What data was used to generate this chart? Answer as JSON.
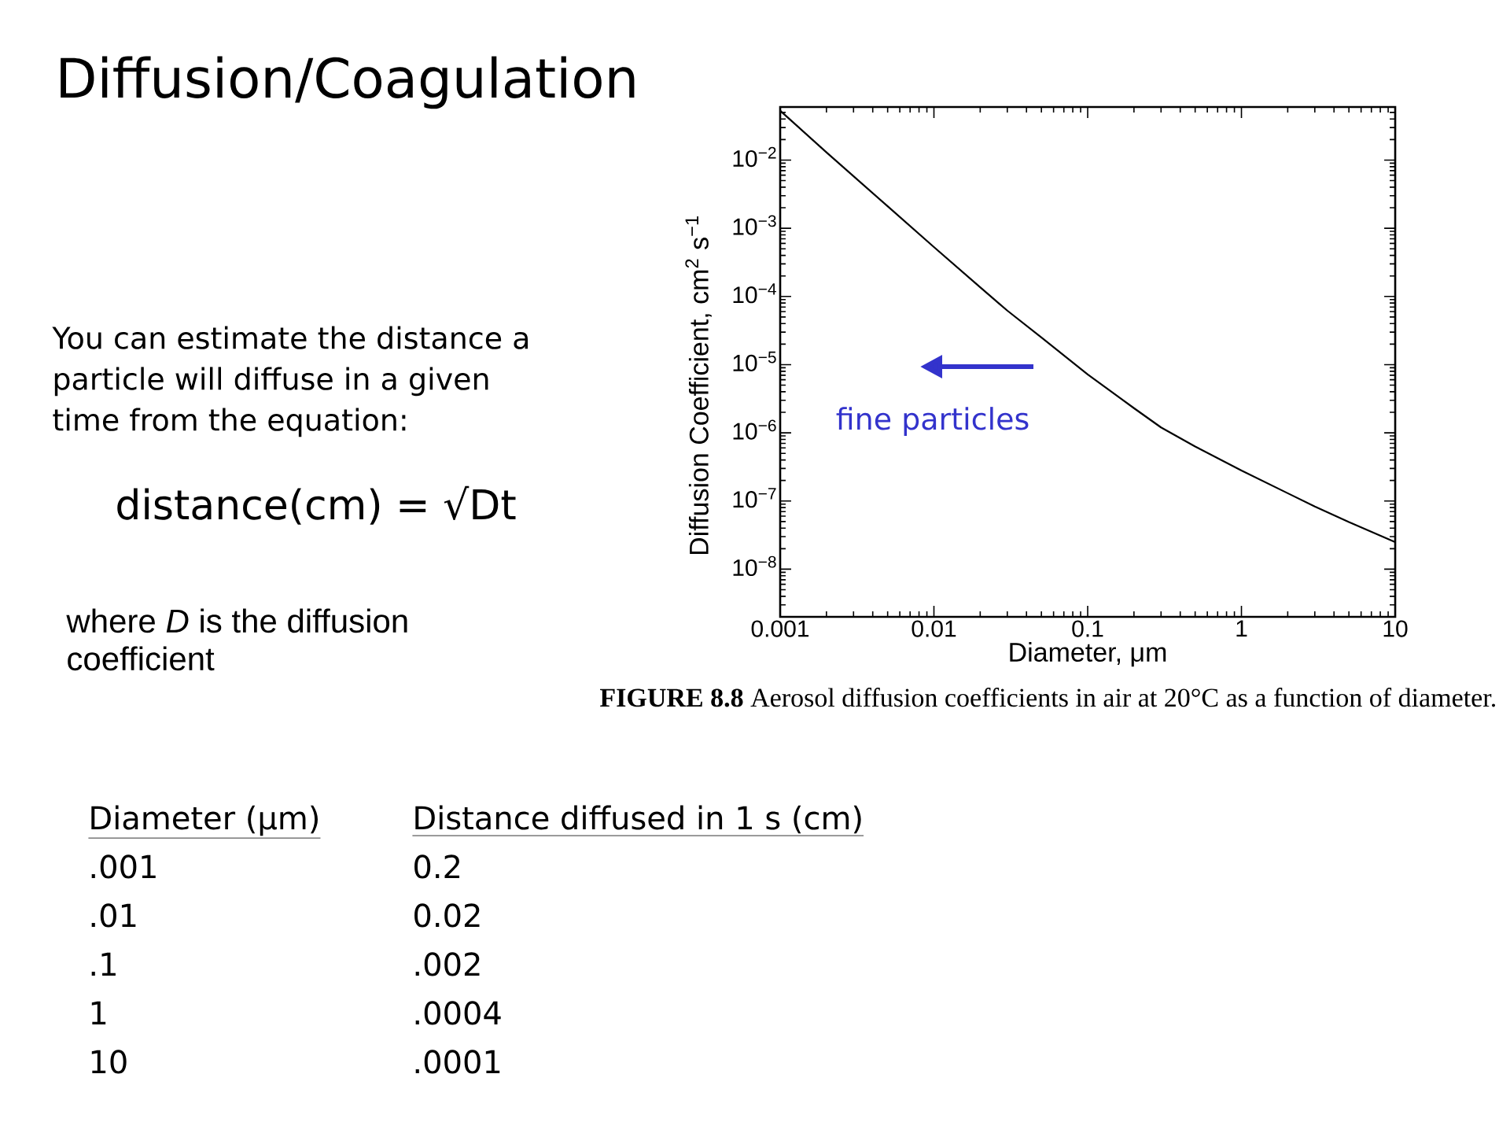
{
  "chart_data": {
    "type": "line",
    "title": "Diffusion/Coagulation",
    "xlabel": "Diameter, μm",
    "ylabel": "Diffusion Coefficient, cm$^{2}$ s$^{−1}$",
    "x": [
      0.001,
      0.002,
      0.005,
      0.01,
      0.02,
      0.03,
      0.05,
      0.1,
      0.2,
      0.3,
      0.5,
      1,
      2,
      3,
      5,
      10
    ],
    "values": [
      0.053,
      0.013,
      0.0021,
      0.00053,
      0.000136,
      6.2e-05,
      2.5e-05,
      7.2e-06,
      2.3e-06,
      1.2e-06,
      6.3e-07,
      2.8e-07,
      1.3e-07,
      8.3e-08,
      4.9e-08,
      2.5e-08
    ],
    "color": "#000000",
    "log": "xy",
    "xlim": [
      0.001,
      10
    ],
    "ylim": [
      2e-09,
      0.06
    ],
    "xticks": [
      0.001,
      {
        "value": 0.002,
        "label": null
      },
      {
        "value": 0.003,
        "label": null
      },
      {
        "value": 0.004,
        "label": null
      },
      {
        "value": 0.005,
        "label": null
      },
      {
        "value": 0.006,
        "label": null
      },
      {
        "value": 0.007,
        "label": null
      },
      {
        "value": 0.008,
        "label": null
      },
      {
        "value": 0.009,
        "label": null
      },
      0.01,
      {
        "value": 0.02,
        "label": null
      },
      {
        "value": 0.03,
        "label": null
      },
      {
        "value": 0.04,
        "label": null
      },
      {
        "value": 0.05,
        "label": null
      },
      {
        "value": 0.06,
        "label": null
      },
      {
        "value": 0.07,
        "label": null
      },
      {
        "value": 0.08,
        "label": null
      },
      {
        "value": 0.09,
        "label": null
      },
      0.1,
      {
        "value": 0.2,
        "label": null
      },
      {
        "value": 0.3,
        "label": null
      },
      {
        "value": 0.4,
        "label": null
      },
      {
        "value": 0.5,
        "label": null
      },
      {
        "value": 0.6,
        "label": null
      },
      {
        "value": 0.7,
        "label": null
      },
      {
        "value": 0.8,
        "label": null
      },
      {
        "value": 0.9,
        "label": null
      },
      1,
      {
        "value": 2,
        "label": null
      },
      {
        "value": 3,
        "label": null
      },
      {
        "value": 4,
        "label": null
      },
      {
        "value": 5,
        "label": null
      },
      {
        "value": 6,
        "label": null
      },
      {
        "value": 7,
        "label": null
      },
      {
        "value": 8,
        "label": null
      },
      {
        "value": 9,
        "label": null
      },
      10
    ],
    "yticks": [
      {
        "value": 3e-09,
        "label": null
      },
      {
        "value": 4e-09,
        "label": null
      },
      {
        "value": 5e-09,
        "label": null
      },
      {
        "value": 6e-09,
        "label": null
      },
      {
        "value": 7e-09,
        "label": null
      },
      {
        "value": 8e-09,
        "label": null
      },
      {
        "value": 9e-09,
        "label": null
      },
      {
        "value": 1e-08,
        "label": "10$^{−8}$"
      },
      {
        "value": 2e-08,
        "label": null
      },
      {
        "value": 3e-08,
        "label": null
      },
      {
        "value": 4e-08,
        "label": null
      },
      {
        "value": 5e-08,
        "label": null
      },
      {
        "value": 6e-08,
        "label": null
      },
      {
        "value": 7e-08,
        "label": null
      },
      {
        "value": 8e-08,
        "label": null
      },
      {
        "value": 9e-08,
        "label": null
      },
      {
        "value": 1e-07,
        "label": "10$^{−7}$"
      },
      {
        "value": 2e-07,
        "label": null
      },
      {
        "value": 3e-07,
        "label": null
      },
      {
        "value": 4e-07,
        "label": null
      },
      {
        "value": 5e-07,
        "label": null
      },
      {
        "value": 6e-07,
        "label": null
      },
      {
        "value": 7e-07,
        "label": null
      },
      {
        "value": 8e-07,
        "label": null
      },
      {
        "value": 9e-07,
        "label": null
      },
      {
        "value": 1e-06,
        "label": "10$^{−6}$"
      },
      {
        "value": 2e-06,
        "label": null
      },
      {
        "value": 3e-06,
        "label": null
      },
      {
        "value": 4e-06,
        "label": null
      },
      {
        "value": 5e-06,
        "label": null
      },
      {
        "value": 6e-06,
        "label": null
      },
      {
        "value": 7e-06,
        "label": null
      },
      {
        "value": 8e-06,
        "label": null
      },
      {
        "value": 9e-06,
        "label": null
      },
      {
        "value": 1e-05,
        "label": "10$^{−5}$"
      },
      {
        "value": 2e-05,
        "label": null
      },
      {
        "value": 3e-05,
        "label": null
      },
      {
        "value": 4e-05,
        "label": null
      },
      {
        "value": 5e-05,
        "label": null
      },
      {
        "value": 6e-05,
        "label": null
      },
      {
        "value": 7e-05,
        "label": null
      },
      {
        "value": 8e-05,
        "label": null
      },
      {
        "value": 9e-05,
        "label": null
      },
      {
        "value": 0.0001,
        "label": "10$^{−4}$"
      },
      {
        "value": 0.0002,
        "label": null
      },
      {
        "value": 0.0003,
        "label": null
      },
      {
        "value": 0.0004,
        "label": null
      },
      {
        "value": 0.0005,
        "label": null
      },
      {
        "value": 0.0006,
        "label": null
      },
      {
        "value": 0.0007,
        "label": null
      },
      {
        "value": 0.0008,
        "label": null
      },
      {
        "value": 0.0009,
        "label": null
      },
      {
        "value": 0.001,
        "label": "10$^{−3}$"
      },
      {
        "value": 0.002,
        "label": null
      },
      {
        "value": 0.003,
        "label": null
      },
      {
        "value": 0.004,
        "label": null
      },
      {
        "value": 0.005,
        "label": null
      },
      {
        "value": 0.006,
        "label": null
      },
      {
        "value": 0.007,
        "label": null
      },
      {
        "value": 0.008,
        "label": null
      },
      {
        "value": 0.009,
        "label": null
      },
      {
        "value": 0.01,
        "label": "10$^{−2}$"
      },
      {
        "value": 0.02,
        "label": null
      },
      {
        "value": 0.03,
        "label": null
      },
      {
        "value": 0.04,
        "label": null
      },
      {
        "value": 0.05,
        "label": null
      }
    ],
    "annotations": [
      "You can estimate the distance a particle will diffuse in a given time from the equation:",
      "distance(cm) = √Dt",
      "where *D* is the diffusion coefficient",
      "fine particles",
      "**FIGURE 8.8** Aerosol diffusion coefficients in air at 20°C as a function of diameter.",
      "Diameter (μm)",
      "Distance diffused in 1 s (cm)",
      ".001",
      "0.2",
      ".01",
      "0.02",
      ".1",
      ".002",
      "1",
      ".0004",
      "10",
      ".0001"
    ]
  }
}
